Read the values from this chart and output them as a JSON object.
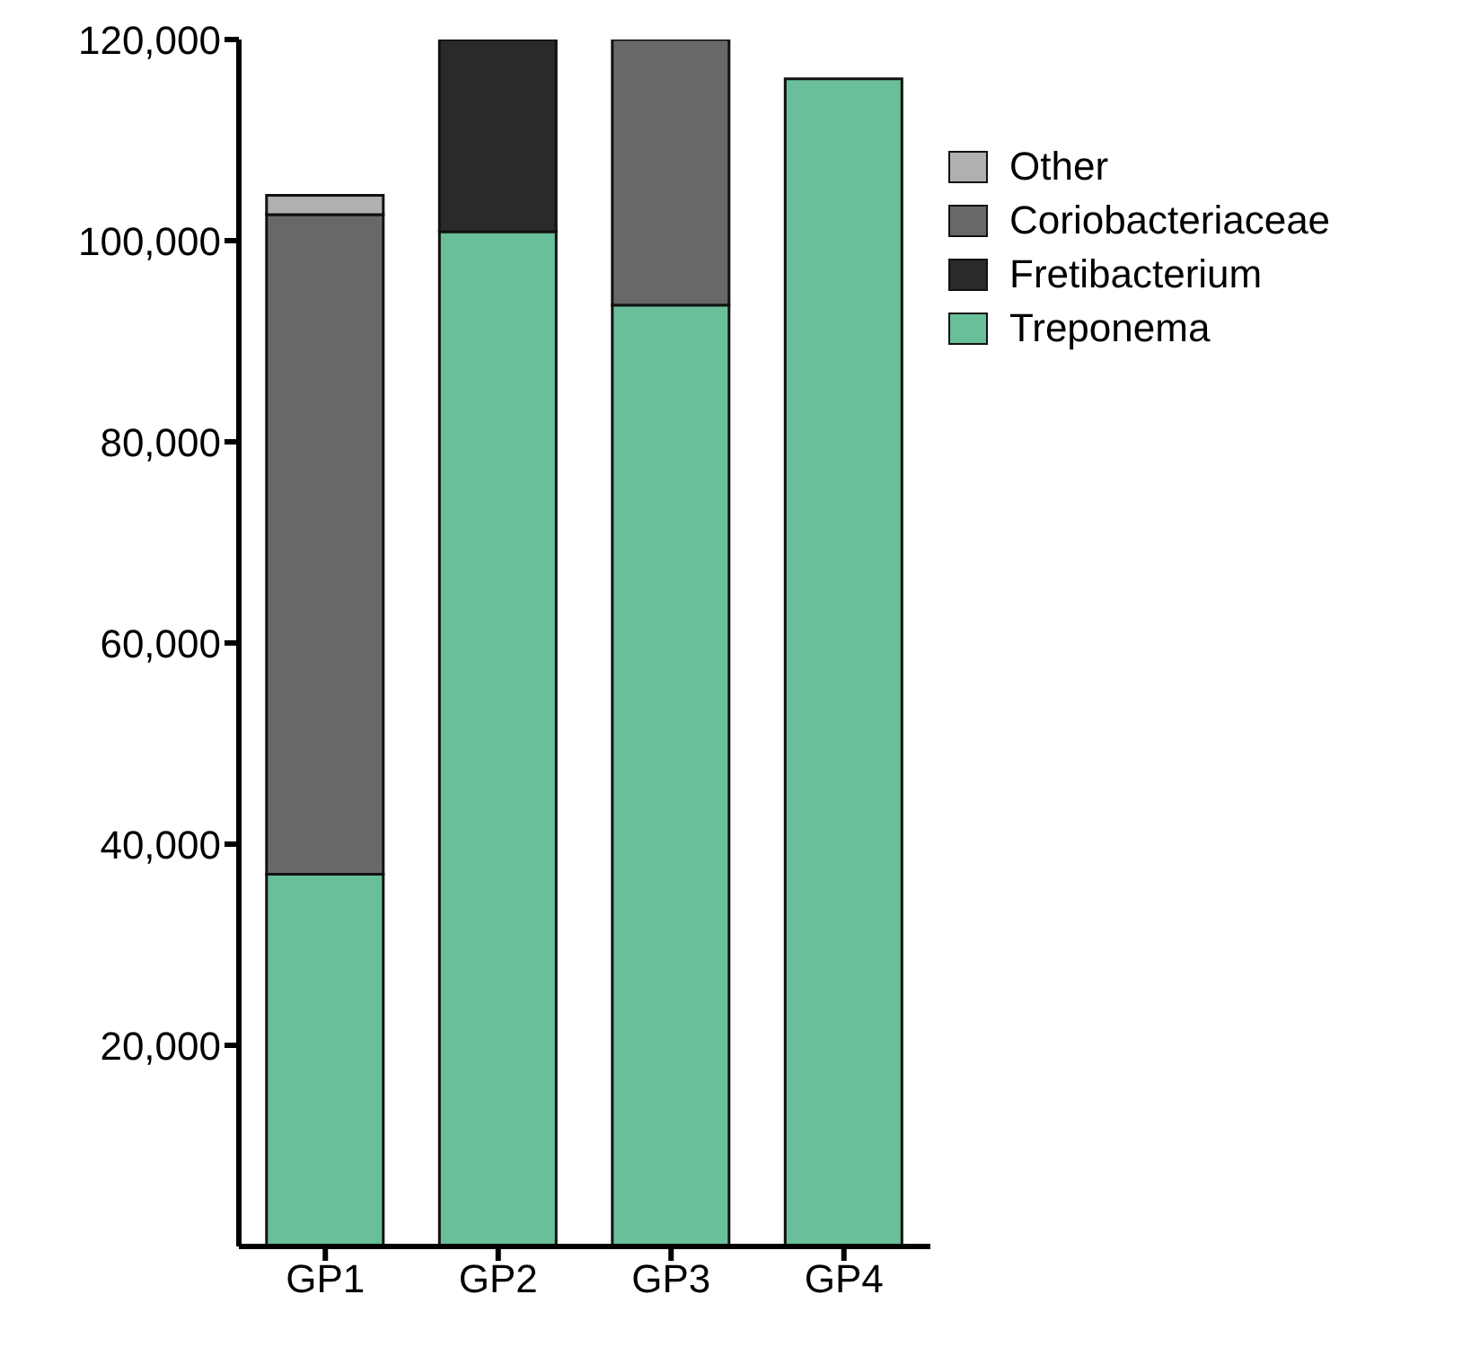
{
  "chart_data": {
    "type": "bar",
    "stacked": true,
    "categories": [
      "GP1",
      "GP2",
      "GP3",
      "GP4"
    ],
    "series": [
      {
        "name": "Treponema",
        "color": "#6abf9b",
        "values": [
          37000,
          100900,
          93600,
          116100
        ]
      },
      {
        "name": "Fretibacterium",
        "color": "#2a2a2a",
        "values": [
          0,
          19100,
          0,
          0
        ]
      },
      {
        "name": "Coriobacteriaceae",
        "color": "#68686a",
        "values": [
          65600,
          0,
          26400,
          0
        ]
      },
      {
        "name": "Other",
        "color": "#b0b0b0",
        "values": [
          1900,
          0,
          0,
          0
        ]
      }
    ],
    "ylim": [
      0,
      120000
    ],
    "yticks": [
      {
        "value": 20000,
        "label": "20,000"
      },
      {
        "value": 40000,
        "label": "40,000"
      },
      {
        "value": 60000,
        "label": "60,000"
      },
      {
        "value": 80000,
        "label": "80,000"
      },
      {
        "value": 100000,
        "label": "100,000"
      },
      {
        "value": 120000,
        "label": "120,000"
      }
    ],
    "grid": false,
    "legend": "top right"
  }
}
